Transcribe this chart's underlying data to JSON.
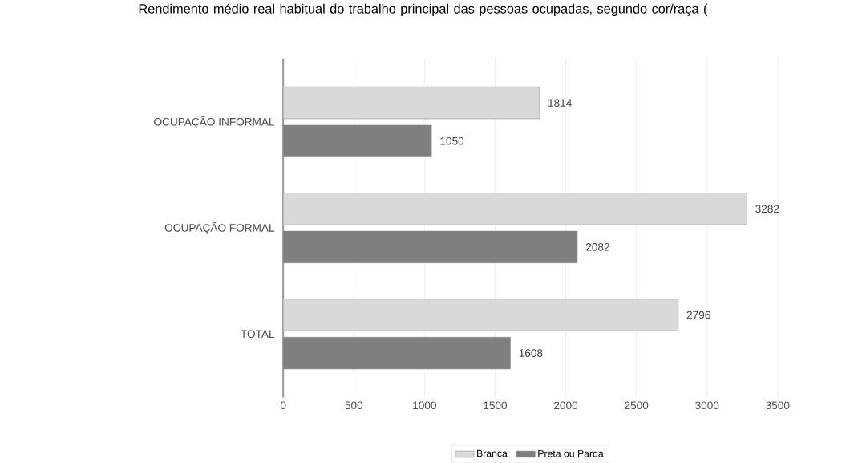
{
  "chart_data": {
    "type": "bar",
    "orientation": "horizontal",
    "title": "Rendimento médio real habitual do trabalho principal das pessoas ocupadas, segundo cor/raça (",
    "categories": [
      "OCUPAÇÃO INFORMAL",
      "OCUPAÇÃO FORMAL",
      "TOTAL"
    ],
    "series": [
      {
        "name": "Branca",
        "color": "#d9d9d9",
        "values": [
          1814,
          3282,
          2796
        ]
      },
      {
        "name": "Preta ou Parda",
        "color": "#7f7f7f",
        "values": [
          1050,
          2082,
          1608
        ]
      }
    ],
    "xlim": [
      0,
      3500
    ],
    "xticks": [
      0,
      500,
      1000,
      1500,
      2000,
      2500,
      3000,
      3500
    ],
    "grid": "x",
    "legend": "bottom",
    "data_labels": true
  }
}
